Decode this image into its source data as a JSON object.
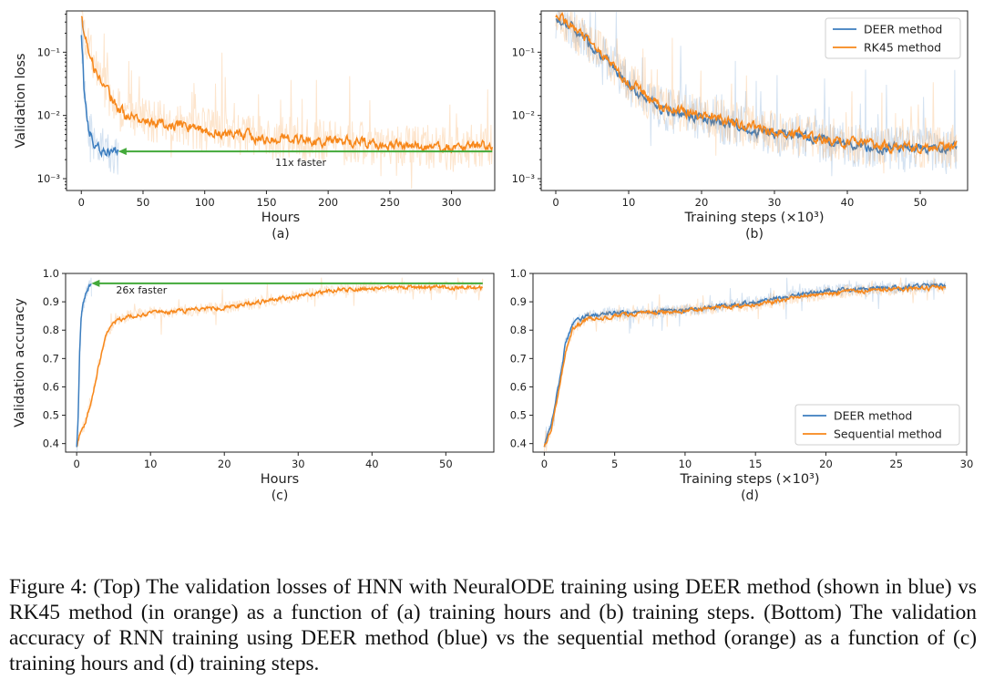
{
  "figure": {
    "caption": "Figure 4: (Top) The validation losses of HNN with NeuralODE training using DEER method (shown in blue) vs RK45 method (in orange) as a function of (a) training hours and (b) training steps. (Bottom) The validation accuracy of RNN training using DEER method (blue) vs the sequential method (orange) as a function of (c) training hours and (d) training steps."
  },
  "colors": {
    "blue": "#3b7dbf",
    "orange": "#f7871a",
    "green": "#43a93a",
    "axis": "#222222"
  },
  "chart_data": [
    {
      "id": "a",
      "type": "line",
      "panel_label": "(a)",
      "xlabel": "Hours",
      "ylabel": "Validation loss",
      "yscale": "log",
      "xlim": [
        -12,
        335
      ],
      "ylim": [
        0.00065,
        0.45
      ],
      "xticks": [
        0,
        50,
        100,
        150,
        200,
        250,
        300
      ],
      "xtick_labels": [
        "0",
        "50",
        "100",
        "150",
        "200",
        "250",
        "300"
      ],
      "yticks": [
        0.001,
        0.01,
        0.1
      ],
      "ytick_labels": [
        "10⁻³",
        "10⁻²",
        "10⁻¹"
      ],
      "series": [
        {
          "name": "RK45 method",
          "color": "orange",
          "x": [
            0,
            2,
            5,
            10,
            20,
            30,
            40,
            60,
            80,
            100,
            150,
            200,
            250,
            300,
            333
          ],
          "y": [
            0.4,
            0.2,
            0.14,
            0.06,
            0.025,
            0.013,
            0.009,
            0.008,
            0.007,
            0.006,
            0.0045,
            0.004,
            0.0035,
            0.003,
            0.0035
          ]
        },
        {
          "name": "DEER method",
          "color": "blue",
          "x": [
            0,
            1,
            2,
            4,
            6,
            10,
            15,
            20,
            25,
            30
          ],
          "y": [
            0.2,
            0.1,
            0.03,
            0.012,
            0.006,
            0.004,
            0.003,
            0.0028,
            0.0026,
            0.0025
          ]
        }
      ],
      "annotation": {
        "text": "11x faster",
        "from_x": 333,
        "to_x": 30,
        "y": 0.0027
      }
    },
    {
      "id": "b",
      "type": "line",
      "panel_label": "(b)",
      "xlabel": "Training steps (×10³)",
      "ylabel": "",
      "yscale": "log",
      "xlim": [
        -2,
        56.5
      ],
      "ylim": [
        0.00065,
        0.45
      ],
      "xticks": [
        0,
        10,
        20,
        30,
        40,
        50
      ],
      "xtick_labels": [
        "0",
        "10",
        "20",
        "30",
        "40",
        "50"
      ],
      "yticks": [
        0.001,
        0.01,
        0.1
      ],
      "ytick_labels": [
        "10⁻³",
        "10⁻²",
        "10⁻¹"
      ],
      "legend": {
        "position": "top-right",
        "entries": [
          "DEER method",
          "RK45 method"
        ]
      },
      "series": [
        {
          "name": "DEER method",
          "color": "blue",
          "x": [
            0,
            2,
            5,
            8,
            10,
            15,
            20,
            25,
            30,
            35,
            40,
            45,
            50,
            55
          ],
          "y": [
            0.35,
            0.25,
            0.12,
            0.06,
            0.03,
            0.012,
            0.009,
            0.007,
            0.005,
            0.0045,
            0.0035,
            0.003,
            0.003,
            0.003
          ]
        },
        {
          "name": "RK45 method",
          "color": "orange",
          "x": [
            0,
            2,
            5,
            8,
            10,
            15,
            20,
            25,
            30,
            35,
            40,
            45,
            50,
            55
          ],
          "y": [
            0.38,
            0.27,
            0.13,
            0.065,
            0.032,
            0.013,
            0.01,
            0.0075,
            0.0055,
            0.0047,
            0.0038,
            0.0033,
            0.0032,
            0.0032
          ]
        }
      ]
    },
    {
      "id": "c",
      "type": "line",
      "panel_label": "(c)",
      "xlabel": "Hours",
      "ylabel": "Validation accuracy",
      "yscale": "linear",
      "xlim": [
        -1.5,
        56.5
      ],
      "ylim": [
        0.37,
        1.0
      ],
      "xticks": [
        0,
        10,
        20,
        30,
        40,
        50
      ],
      "xtick_labels": [
        "0",
        "10",
        "20",
        "30",
        "40",
        "50"
      ],
      "yticks": [
        0.4,
        0.5,
        0.6,
        0.7,
        0.8,
        0.9,
        1.0
      ],
      "ytick_labels": [
        "0.4",
        "0.5",
        "0.6",
        "0.7",
        "0.8",
        "0.9",
        "1.0"
      ],
      "series": [
        {
          "name": "Sequential method",
          "color": "orange",
          "x": [
            0,
            0.5,
            1,
            2,
            3,
            4,
            5,
            7,
            10,
            15,
            20,
            25,
            30,
            35,
            40,
            45,
            50,
            55
          ],
          "y": [
            0.39,
            0.44,
            0.46,
            0.55,
            0.68,
            0.78,
            0.83,
            0.85,
            0.86,
            0.87,
            0.88,
            0.9,
            0.92,
            0.94,
            0.95,
            0.95,
            0.95,
            0.95
          ]
        },
        {
          "name": "DEER method",
          "color": "blue",
          "x": [
            0,
            0.2,
            0.4,
            0.6,
            0.8,
            1.0,
            1.3,
            1.6,
            2.0
          ],
          "y": [
            0.39,
            0.5,
            0.72,
            0.84,
            0.88,
            0.9,
            0.93,
            0.95,
            0.96
          ]
        }
      ],
      "annotation": {
        "text": "26x faster",
        "from_x": 55,
        "to_x": 2,
        "y": 0.965
      }
    },
    {
      "id": "d",
      "type": "line",
      "panel_label": "(d)",
      "xlabel": "Training steps (×10³)",
      "ylabel": "",
      "yscale": "linear",
      "xlim": [
        -0.8,
        30
      ],
      "ylim": [
        0.37,
        1.0
      ],
      "xticks": [
        0,
        5,
        10,
        15,
        20,
        25,
        30
      ],
      "xtick_labels": [
        "0",
        "5",
        "10",
        "15",
        "20",
        "25",
        "30"
      ],
      "yticks": [
        0.4,
        0.5,
        0.6,
        0.7,
        0.8,
        0.9,
        1.0
      ],
      "ytick_labels": [
        "0.4",
        "0.5",
        "0.6",
        "0.7",
        "0.8",
        "0.9",
        "1.0"
      ],
      "legend": {
        "position": "bottom-right",
        "entries": [
          "DEER method",
          "Sequential method"
        ]
      },
      "series": [
        {
          "name": "DEER method",
          "color": "blue",
          "x": [
            0,
            0.5,
            1,
            1.5,
            2,
            3,
            5,
            10,
            15,
            20,
            25,
            28.5
          ],
          "y": [
            0.39,
            0.47,
            0.6,
            0.75,
            0.82,
            0.85,
            0.86,
            0.87,
            0.9,
            0.94,
            0.95,
            0.96
          ]
        },
        {
          "name": "Sequential method",
          "color": "orange",
          "x": [
            0,
            0.5,
            1,
            1.5,
            2,
            3,
            5,
            10,
            15,
            20,
            25,
            28.5
          ],
          "y": [
            0.39,
            0.45,
            0.58,
            0.72,
            0.8,
            0.84,
            0.85,
            0.87,
            0.89,
            0.93,
            0.945,
            0.95
          ]
        }
      ]
    }
  ]
}
